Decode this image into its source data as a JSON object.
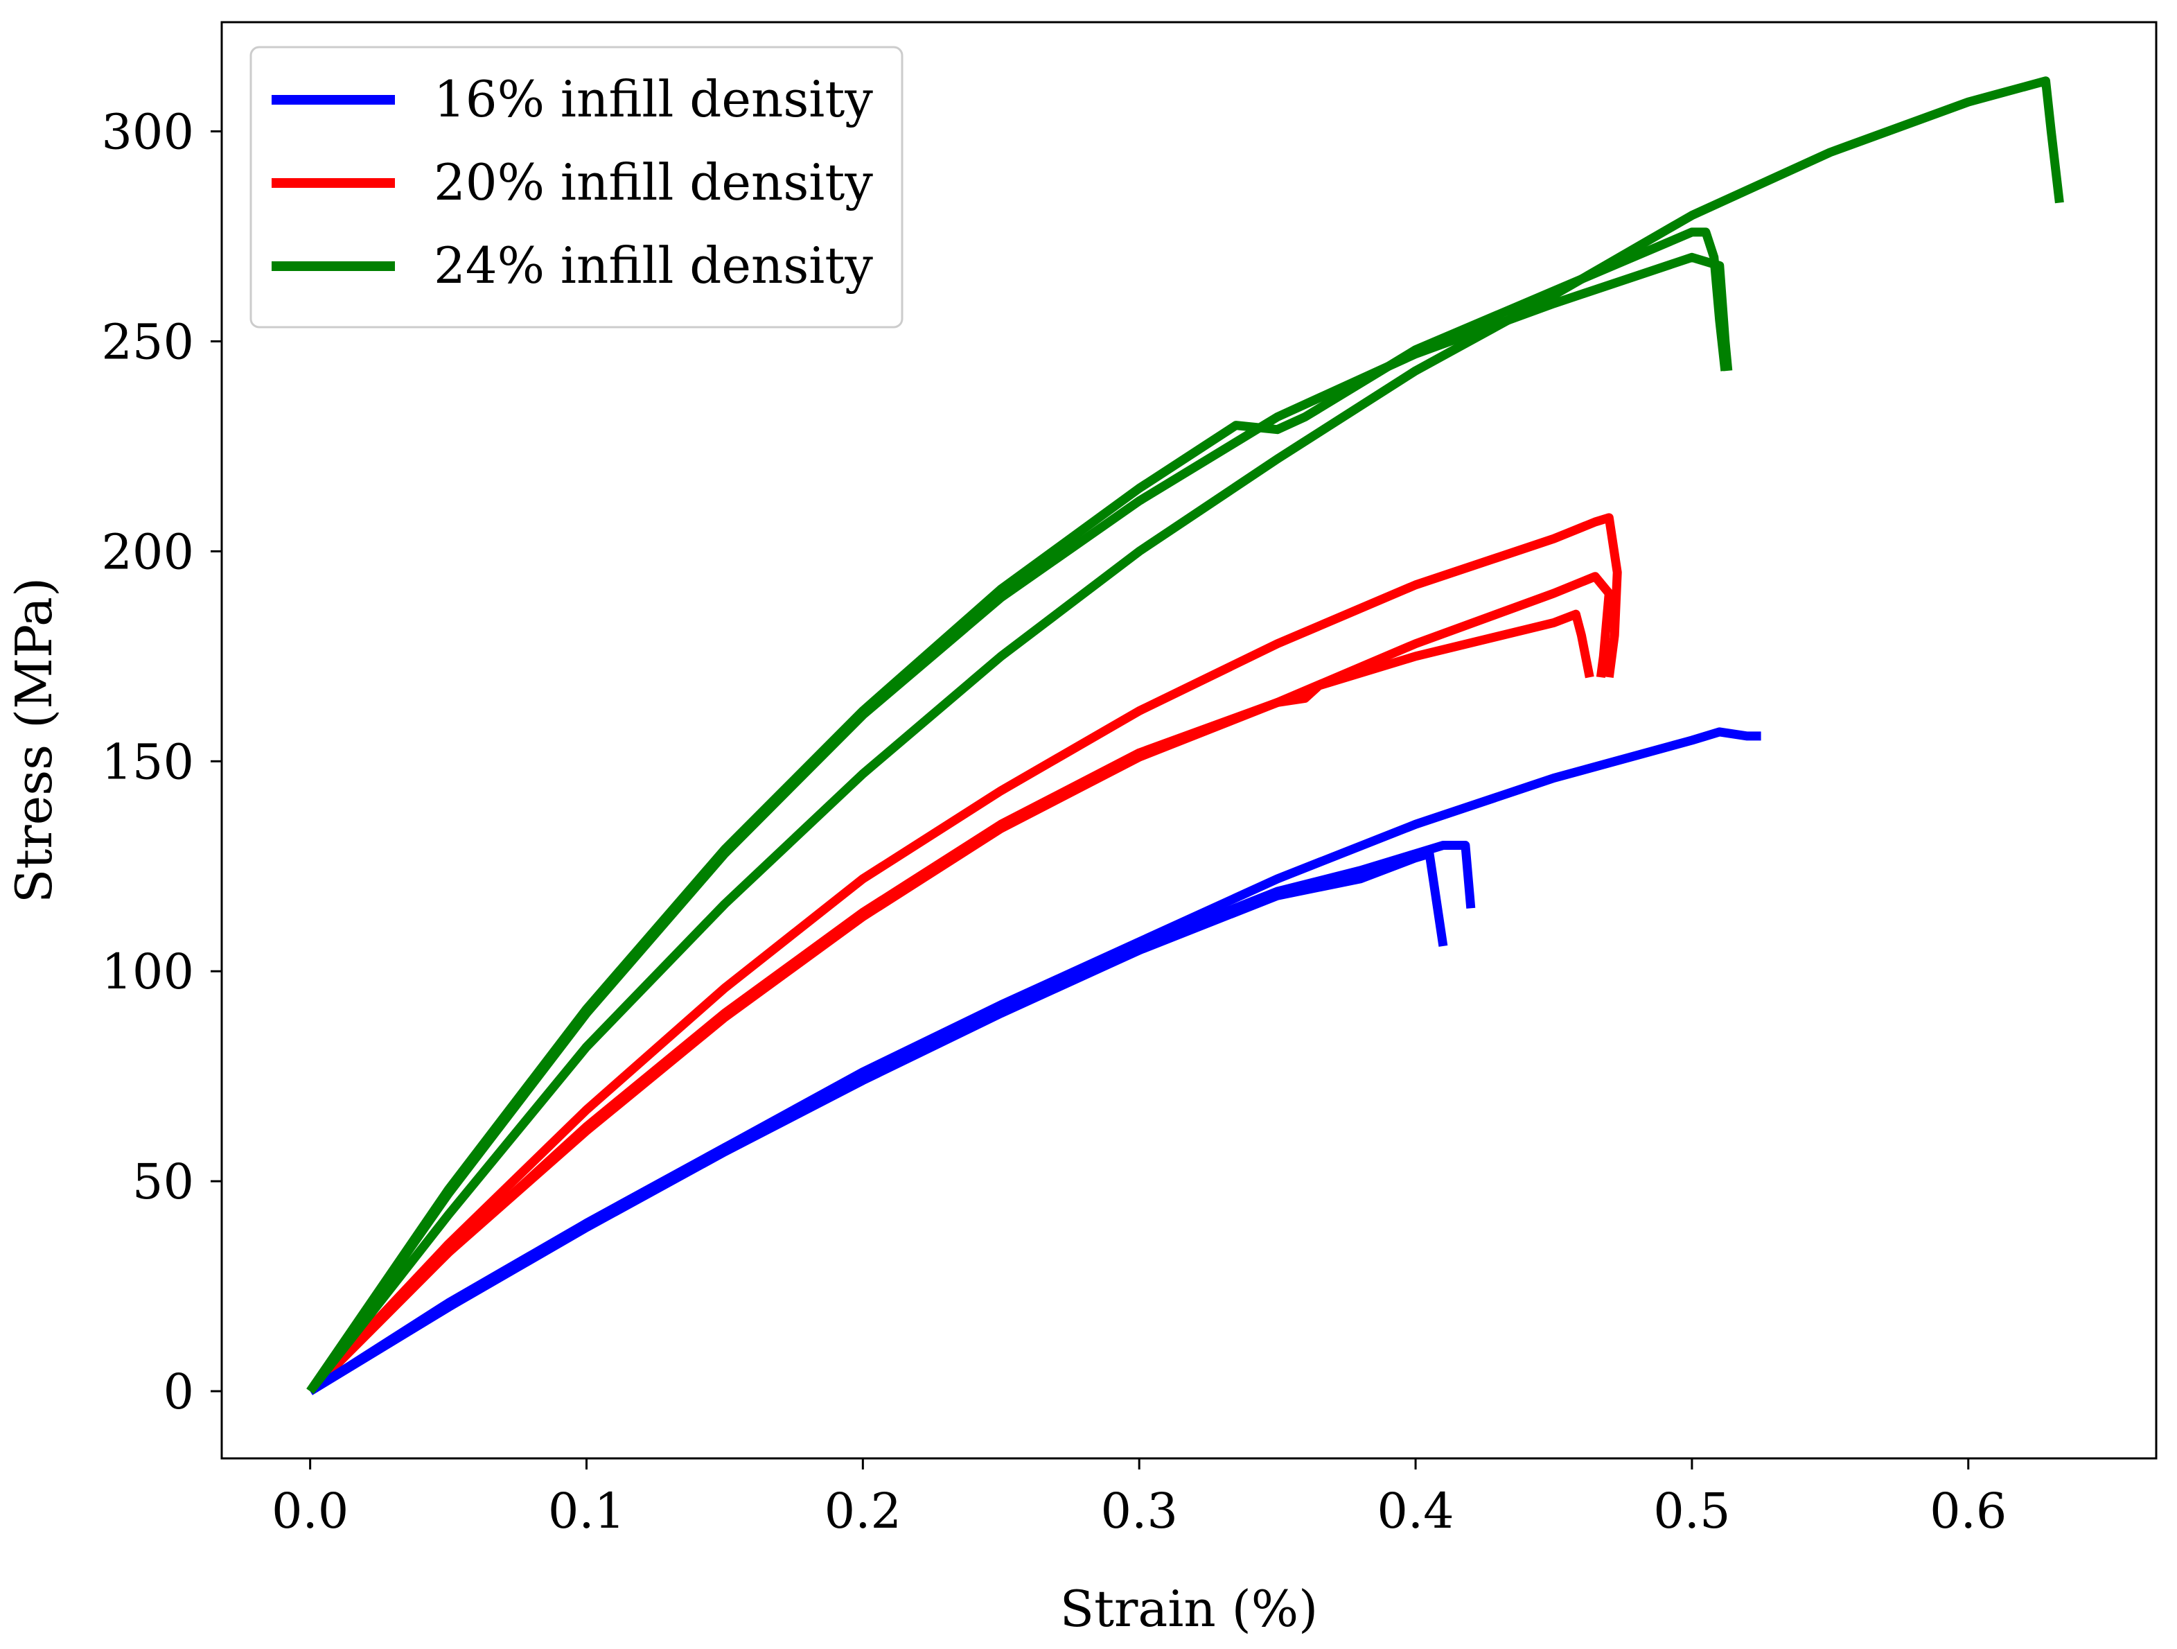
{
  "chart_data": {
    "type": "line",
    "title": "",
    "xlabel": "Strain (%)",
    "ylabel": "Stress (MPa)",
    "xlim": [
      -0.032,
      0.668
    ],
    "ylim": [
      -16,
      326
    ],
    "xticks": [
      0.0,
      0.1,
      0.2,
      0.3,
      0.4,
      0.5,
      0.6
    ],
    "xtick_labels": [
      "0.0",
      "0.1",
      "0.2",
      "0.3",
      "0.4",
      "0.5",
      "0.6"
    ],
    "yticks": [
      0,
      50,
      100,
      150,
      200,
      250,
      300
    ],
    "ytick_labels": [
      "0",
      "50",
      "100",
      "150",
      "200",
      "250",
      "300"
    ],
    "grid": false,
    "legend_position": "top-left",
    "legend": [
      {
        "label": "16% infill density",
        "color": "#0000ff"
      },
      {
        "label": "20% infill density",
        "color": "#ff0000"
      },
      {
        "label": "24% infill density",
        "color": "#008000"
      }
    ],
    "series": [
      {
        "name": "16% infill density",
        "group": 0,
        "color": "#0000ff",
        "points": [
          [
            0,
            0
          ],
          [
            0.05,
            20
          ],
          [
            0.1,
            39
          ],
          [
            0.15,
            57
          ],
          [
            0.2,
            74
          ],
          [
            0.25,
            90
          ],
          [
            0.3,
            105
          ],
          [
            0.35,
            118
          ],
          [
            0.38,
            122
          ],
          [
            0.4,
            127
          ],
          [
            0.405,
            128
          ],
          [
            0.41,
            106
          ]
        ]
      },
      {
        "name": "16% infill density",
        "group": 0,
        "color": "#0000ff",
        "points": [
          [
            0,
            0
          ],
          [
            0.05,
            20
          ],
          [
            0.1,
            40
          ],
          [
            0.15,
            58
          ],
          [
            0.2,
            75
          ],
          [
            0.25,
            91
          ],
          [
            0.3,
            106
          ],
          [
            0.35,
            119
          ],
          [
            0.38,
            124
          ],
          [
            0.4,
            128
          ],
          [
            0.41,
            130
          ],
          [
            0.418,
            130
          ],
          [
            0.42,
            115
          ]
        ]
      },
      {
        "name": "16% infill density",
        "group": 0,
        "color": "#0000ff",
        "points": [
          [
            0,
            0
          ],
          [
            0.05,
            21
          ],
          [
            0.1,
            40
          ],
          [
            0.15,
            58
          ],
          [
            0.2,
            76
          ],
          [
            0.25,
            92
          ],
          [
            0.3,
            107
          ],
          [
            0.35,
            122
          ],
          [
            0.4,
            135
          ],
          [
            0.45,
            146
          ],
          [
            0.5,
            155
          ],
          [
            0.51,
            157
          ],
          [
            0.52,
            156
          ],
          [
            0.525,
            156
          ]
        ]
      },
      {
        "name": "20% infill density",
        "group": 1,
        "color": "#ff0000",
        "points": [
          [
            0,
            0
          ],
          [
            0.05,
            33
          ],
          [
            0.1,
            63
          ],
          [
            0.15,
            90
          ],
          [
            0.2,
            114
          ],
          [
            0.25,
            135
          ],
          [
            0.3,
            152
          ],
          [
            0.35,
            164
          ],
          [
            0.36,
            165
          ],
          [
            0.365,
            168
          ],
          [
            0.4,
            175
          ],
          [
            0.45,
            183
          ],
          [
            0.458,
            185
          ],
          [
            0.46,
            180
          ],
          [
            0.463,
            170
          ]
        ]
      },
      {
        "name": "20% infill density",
        "group": 1,
        "color": "#ff0000",
        "points": [
          [
            0,
            0
          ],
          [
            0.05,
            33
          ],
          [
            0.1,
            62
          ],
          [
            0.15,
            89
          ],
          [
            0.2,
            113
          ],
          [
            0.25,
            134
          ],
          [
            0.3,
            151
          ],
          [
            0.35,
            164
          ],
          [
            0.4,
            178
          ],
          [
            0.45,
            190
          ],
          [
            0.465,
            194
          ],
          [
            0.47,
            190
          ],
          [
            0.468,
            175
          ],
          [
            0.467,
            170
          ]
        ]
      },
      {
        "name": "20% infill density",
        "group": 1,
        "color": "#ff0000",
        "points": [
          [
            0,
            0
          ],
          [
            0.05,
            35
          ],
          [
            0.1,
            67
          ],
          [
            0.15,
            96
          ],
          [
            0.2,
            122
          ],
          [
            0.25,
            143
          ],
          [
            0.3,
            162
          ],
          [
            0.35,
            178
          ],
          [
            0.4,
            192
          ],
          [
            0.45,
            203
          ],
          [
            0.465,
            207
          ],
          [
            0.47,
            208
          ],
          [
            0.473,
            195
          ],
          [
            0.472,
            180
          ],
          [
            0.47,
            170
          ]
        ]
      },
      {
        "name": "24% infill density",
        "group": 2,
        "color": "#008000",
        "points": [
          [
            0,
            0
          ],
          [
            0.05,
            48
          ],
          [
            0.1,
            91
          ],
          [
            0.15,
            129
          ],
          [
            0.2,
            162
          ],
          [
            0.25,
            191
          ],
          [
            0.3,
            215
          ],
          [
            0.335,
            230
          ],
          [
            0.35,
            229
          ],
          [
            0.36,
            232
          ],
          [
            0.4,
            248
          ],
          [
            0.45,
            262
          ],
          [
            0.5,
            276
          ],
          [
            0.505,
            276
          ],
          [
            0.508,
            270
          ],
          [
            0.51,
            255
          ],
          [
            0.512,
            243
          ]
        ]
      },
      {
        "name": "24% infill density",
        "group": 2,
        "color": "#008000",
        "points": [
          [
            0,
            0
          ],
          [
            0.05,
            47
          ],
          [
            0.1,
            90
          ],
          [
            0.15,
            128
          ],
          [
            0.2,
            161
          ],
          [
            0.25,
            189
          ],
          [
            0.3,
            212
          ],
          [
            0.35,
            232
          ],
          [
            0.4,
            247
          ],
          [
            0.45,
            259
          ],
          [
            0.5,
            270
          ],
          [
            0.51,
            268
          ],
          [
            0.512,
            250
          ],
          [
            0.513,
            243
          ]
        ]
      },
      {
        "name": "24% infill density",
        "group": 2,
        "color": "#008000",
        "points": [
          [
            0,
            0
          ],
          [
            0.05,
            42
          ],
          [
            0.1,
            82
          ],
          [
            0.15,
            116
          ],
          [
            0.2,
            147
          ],
          [
            0.25,
            175
          ],
          [
            0.3,
            200
          ],
          [
            0.35,
            222
          ],
          [
            0.4,
            243
          ],
          [
            0.45,
            261
          ],
          [
            0.5,
            280
          ],
          [
            0.55,
            295
          ],
          [
            0.6,
            307
          ],
          [
            0.628,
            312
          ],
          [
            0.63,
            300
          ],
          [
            0.633,
            283
          ]
        ]
      }
    ]
  }
}
